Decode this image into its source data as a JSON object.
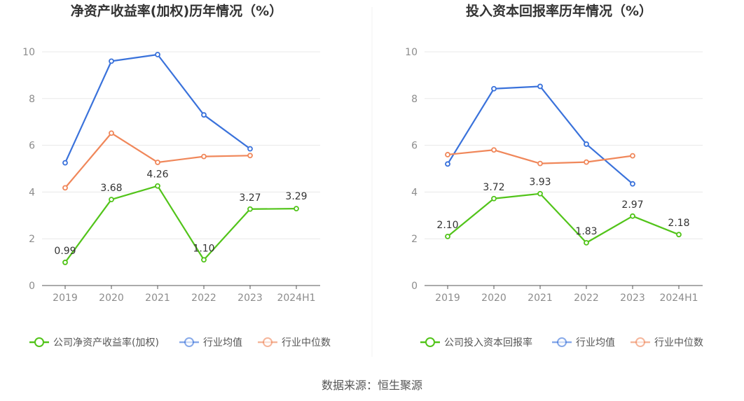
{
  "source": "数据来源：恒生聚源",
  "chart_data": [
    {
      "type": "line",
      "title": "净资产收益率(加权)历年情况（%）",
      "categories": [
        "2019",
        "2020",
        "2021",
        "2022",
        "2023",
        "2024H1"
      ],
      "ylim": [
        0,
        10
      ],
      "yticks": [
        "0",
        "2",
        "4",
        "6",
        "8",
        "10"
      ],
      "grid": true,
      "legend_position": "bottom",
      "series": [
        {
          "name": "公司净资产收益率(加权)",
          "color": "#52c41a",
          "values": [
            0.99,
            3.68,
            4.26,
            1.1,
            3.27,
            3.29
          ],
          "labels": [
            "0.99",
            "3.68",
            "4.26",
            "1.10",
            "3.27",
            "3.29"
          ]
        },
        {
          "name": "行业均值",
          "color": "#3a72db",
          "values": [
            5.25,
            9.6,
            9.88,
            7.3,
            5.85,
            null
          ]
        },
        {
          "name": "行业中位数",
          "color": "#f0875a",
          "values": [
            4.18,
            6.52,
            5.27,
            5.52,
            5.56,
            null
          ]
        }
      ]
    },
    {
      "type": "line",
      "title": "投入资本回报率历年情况（%）",
      "categories": [
        "2019",
        "2020",
        "2021",
        "2022",
        "2023",
        "2024H1"
      ],
      "ylim": [
        0,
        10
      ],
      "yticks": [
        "0",
        "2",
        "4",
        "6",
        "8",
        "10"
      ],
      "grid": true,
      "legend_position": "bottom",
      "series": [
        {
          "name": "公司投入资本回报率",
          "color": "#52c41a",
          "values": [
            2.1,
            3.72,
            3.93,
            1.83,
            2.97,
            2.18
          ],
          "labels": [
            "2.10",
            "3.72",
            "3.93",
            "1.83",
            "2.97",
            "2.18"
          ]
        },
        {
          "name": "行业均值",
          "color": "#3a72db",
          "values": [
            5.2,
            8.42,
            8.52,
            6.05,
            4.35,
            null
          ]
        },
        {
          "name": "行业中位数",
          "color": "#f0875a",
          "values": [
            5.6,
            5.8,
            5.22,
            5.28,
            5.55,
            null
          ]
        }
      ]
    }
  ]
}
